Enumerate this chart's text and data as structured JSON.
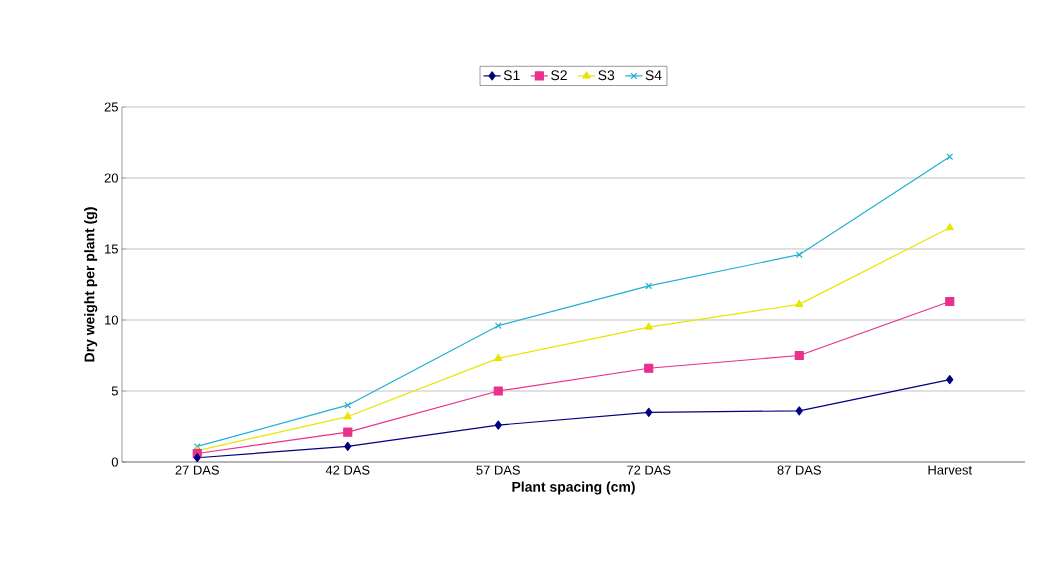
{
  "chart_data": {
    "type": "line",
    "xlabel": "Plant spacing (cm)",
    "ylabel": "Dry weight per plant (g)",
    "categories": [
      "27 DAS",
      "42 DAS",
      "57 DAS",
      "72 DAS",
      "87 DAS",
      "Harvest"
    ],
    "series": [
      {
        "name": "S1",
        "color": "#00007f",
        "marker": "diamond",
        "values": [
          0.3,
          1.1,
          2.6,
          3.5,
          3.6,
          5.8
        ]
      },
      {
        "name": "S2",
        "color": "#e8308c",
        "marker": "square",
        "values": [
          0.6,
          2.1,
          5.0,
          6.6,
          7.5,
          11.3
        ]
      },
      {
        "name": "S3",
        "color": "#e6e600",
        "marker": "triangle",
        "values": [
          0.8,
          3.2,
          7.3,
          9.5,
          11.1,
          16.5
        ]
      },
      {
        "name": "S4",
        "color": "#1fb0d0",
        "marker": "cross",
        "values": [
          1.1,
          4.0,
          9.6,
          12.4,
          14.6,
          21.5
        ]
      }
    ],
    "ylim": [
      0,
      25
    ],
    "yticks": [
      0,
      5,
      10,
      15,
      20,
      25
    ],
    "grid": "y",
    "legend": "top",
    "line_style": "solid"
  }
}
